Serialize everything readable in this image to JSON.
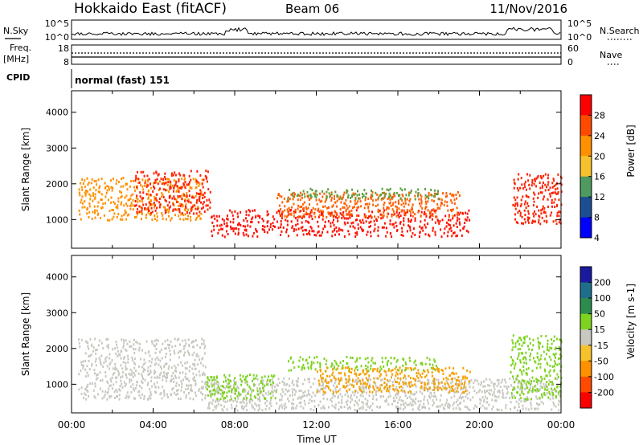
{
  "header": {
    "title": "Hokkaido East (fitACF)",
    "beam": "Beam 06",
    "date": "11/Nov/2016"
  },
  "strips": {
    "nsky_label": "N.Sky",
    "nsearch_label": "N.Search",
    "nsky_ticks": [
      "10^5",
      "10^0"
    ],
    "nsearch_ticks": [
      "10^5",
      "10^0"
    ],
    "freq_label": "Freq.",
    "freq_unit": "[MHz]",
    "freq_ticks": [
      "18",
      "8"
    ],
    "nave_label": "Nave",
    "nave_ticks": [
      "60",
      "0"
    ],
    "cpid_label": "CPID",
    "cpid_value": "normal (fast) 151"
  },
  "chart_data": [
    {
      "type": "heatmap",
      "name": "power",
      "ylabel": "Slant Range [km]",
      "yticks": [
        1000,
        2000,
        3000,
        4000
      ],
      "ylim": [
        200,
        4600
      ],
      "xlim_hours": [
        0,
        24
      ],
      "colorbar_label": "Power [dB]",
      "colorbar_ticks": [
        "28",
        "24",
        "20",
        "16",
        "12",
        "8",
        "4"
      ],
      "colorbar_colors": [
        "#ff0000",
        "#ff4a00",
        "#ff9000",
        "#f6c22c",
        "#4e9a5f",
        "#1c4e92",
        "#0000ff"
      ],
      "scatter_regions": [
        {
          "t0": 0.3,
          "t1": 6.4,
          "r0": 1000,
          "r1": 2200,
          "color": "#ff9000"
        },
        {
          "t0": 3.0,
          "t1": 6.8,
          "r0": 1200,
          "r1": 2400,
          "color": "#ff2000"
        },
        {
          "t0": 6.8,
          "t1": 19.5,
          "r0": 550,
          "r1": 1300,
          "color": "#ff1000"
        },
        {
          "t0": 10.0,
          "t1": 19.0,
          "r0": 1100,
          "r1": 1800,
          "color": "#ff6000"
        },
        {
          "t0": 10.5,
          "t1": 18.0,
          "r0": 1600,
          "r1": 1900,
          "color": "#5aa040"
        },
        {
          "t0": 21.6,
          "t1": 24.0,
          "r0": 900,
          "r1": 2300,
          "color": "#ff2000"
        }
      ]
    },
    {
      "type": "heatmap",
      "name": "velocity",
      "ylabel": "Slant Range [km]",
      "yticks": [
        1000,
        2000,
        3000,
        4000
      ],
      "ylim": [
        200,
        4600
      ],
      "xlim_hours": [
        0,
        24
      ],
      "xticks": [
        "00:00",
        "04:00",
        "08:00",
        "12:00",
        "16:00",
        "20:00",
        "00:00"
      ],
      "xlabel": "Time UT",
      "colorbar_label": "Velocity [m s-1]",
      "colorbar_ticks": [
        "200",
        "100",
        "50",
        "15",
        "-15",
        "-50",
        "-100",
        "-200"
      ],
      "colorbar_colors": [
        "#1a1aa0",
        "#1f6e8c",
        "#2e8b4e",
        "#7ed321",
        "#c8c8c0",
        "#f6c22c",
        "#ff9000",
        "#ff4a00",
        "#ff0000"
      ],
      "scatter_regions": [
        {
          "t0": 0.3,
          "t1": 6.6,
          "r0": 600,
          "r1": 2300,
          "color": "#c8c8c0"
        },
        {
          "t0": 6.6,
          "t1": 24.0,
          "r0": 300,
          "r1": 1200,
          "color": "#c8c8c0"
        },
        {
          "t0": 6.6,
          "t1": 10.0,
          "r0": 600,
          "r1": 1300,
          "color": "#7ed321"
        },
        {
          "t0": 10.5,
          "t1": 18.0,
          "r0": 1400,
          "r1": 1800,
          "color": "#7ed321"
        },
        {
          "t0": 12.0,
          "t1": 19.5,
          "r0": 800,
          "r1": 1500,
          "color": "#f6a000"
        },
        {
          "t0": 21.5,
          "t1": 24.0,
          "r0": 600,
          "r1": 2400,
          "color": "#7ed321"
        }
      ]
    }
  ]
}
